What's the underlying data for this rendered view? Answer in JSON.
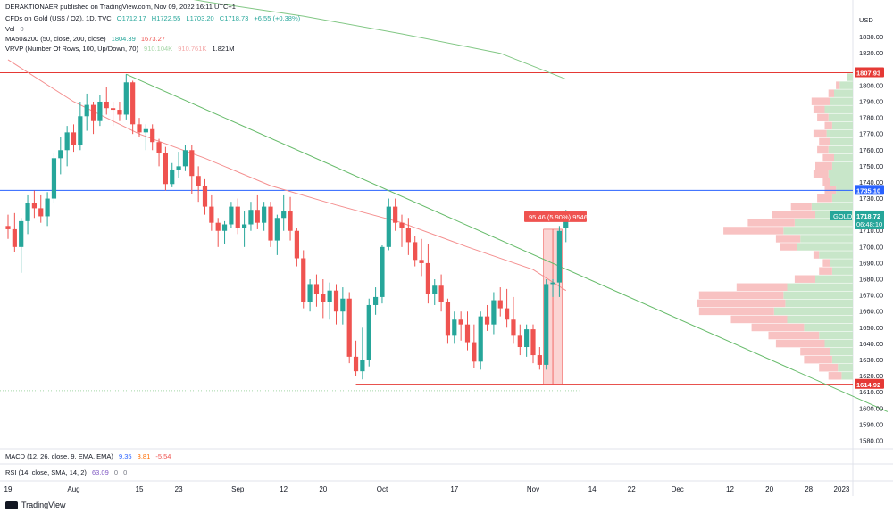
{
  "header": {
    "publisher": "DERAKTIONAER published on TradingView.com, Nov 09, 2022 16:11 UTC+1",
    "symbol": "CFDs on Gold (US$ / OZ), 1D, TVC",
    "open": "O1712.17",
    "high": "H1722.55",
    "low": "L1703.20",
    "close": "C1718.73",
    "change": "+6.55 (+0.38%)",
    "vol_label": "Vol",
    "vol_value": "0",
    "ma_label": "MA50&200 (50, close, 200, close)",
    "ma_values": "1804.39",
    "ma_values2": "1673.27",
    "vrvp_label": "VRVP (Number Of Rows, 100, Up/Down, 70)",
    "vrvp_v1": "910.104K",
    "vrvp_v2": "910.761K",
    "vrvp_v3": "1.821M"
  },
  "macd": {
    "label": "MACD (12, 26, close, 9, EMA, EMA)",
    "v1": "9.35",
    "v2": "3.81",
    "v3": "-5.54"
  },
  "rsi": {
    "label": "RSI (14, close, SMA, 14, 2)",
    "v1": "63.09",
    "v2": "0",
    "v3": "0"
  },
  "footer": {
    "brand": "TradingView"
  },
  "price_axis": {
    "currency": "USD"
  },
  "badges": {
    "resistance": "1807.93",
    "mid_line": "1735.10",
    "support": "1614.92",
    "symbol": "GOLD",
    "last_price": "1718.72",
    "countdown": "06:48:10",
    "measure": "95.46 (5.90%) 9546"
  },
  "colors": {
    "up": "#26a69a",
    "down": "#ef5350",
    "ma200": "#81c784",
    "ma50": "#f48f8f",
    "trend": "#66bb6a",
    "resistance": "#e53935",
    "mid": "#2962ff"
  },
  "chart_data": {
    "type": "candlestick",
    "title": "CFDs on Gold (US$ / OZ), 1D, TVC",
    "ylabel": "USD",
    "ylim": [
      1575,
      1853
    ],
    "yticks": [
      1580,
      1590,
      1600,
      1610,
      1620,
      1630,
      1640,
      1650,
      1660,
      1670,
      1680,
      1690,
      1700,
      1710,
      1720,
      1730,
      1740,
      1750,
      1760,
      1770,
      1780,
      1790,
      1800,
      1810,
      1820,
      1830,
      1840,
      1850
    ],
    "xticks": [
      {
        "label": "19",
        "idx": 0
      },
      {
        "label": "Aug",
        "idx": 10
      },
      {
        "label": "15",
        "idx": 20
      },
      {
        "label": "23",
        "idx": 26
      },
      {
        "label": "Sep",
        "idx": 35
      },
      {
        "label": "12",
        "idx": 42
      },
      {
        "label": "20",
        "idx": 48
      },
      {
        "label": "Oct",
        "idx": 57
      },
      {
        "label": "17",
        "idx": 68
      },
      {
        "label": "Nov",
        "idx": 80
      },
      {
        "label": "14",
        "idx": 89
      },
      {
        "label": "22",
        "idx": 95
      },
      {
        "label": "Dec",
        "idx": 102
      },
      {
        "label": "12",
        "idx": 110
      },
      {
        "label": "20",
        "idx": 116
      },
      {
        "label": "28",
        "idx": 122
      },
      {
        "label": "2023",
        "idx": 127
      }
    ],
    "ohlc": [
      [
        1713,
        1720,
        1705,
        1711
      ],
      [
        1711,
        1721,
        1697,
        1700
      ],
      [
        1700,
        1718,
        1684,
        1716
      ],
      [
        1716,
        1732,
        1708,
        1727
      ],
      [
        1727,
        1735,
        1718,
        1724
      ],
      [
        1724,
        1732,
        1715,
        1719
      ],
      [
        1719,
        1734,
        1713,
        1730
      ],
      [
        1730,
        1758,
        1727,
        1755
      ],
      [
        1755,
        1768,
        1745,
        1760
      ],
      [
        1760,
        1775,
        1750,
        1771
      ],
      [
        1771,
        1776,
        1759,
        1763
      ],
      [
        1763,
        1790,
        1760,
        1781
      ],
      [
        1781,
        1795,
        1772,
        1788
      ],
      [
        1788,
        1790,
        1770,
        1778
      ],
      [
        1778,
        1794,
        1775,
        1790
      ],
      [
        1790,
        1799,
        1782,
        1786
      ],
      [
        1786,
        1790,
        1775,
        1785
      ],
      [
        1785,
        1790,
        1778,
        1782
      ],
      [
        1782,
        1807,
        1779,
        1802
      ],
      [
        1802,
        1803,
        1770,
        1776
      ],
      [
        1776,
        1780,
        1768,
        1771
      ],
      [
        1771,
        1776,
        1760,
        1773
      ],
      [
        1773,
        1776,
        1760,
        1765
      ],
      [
        1765,
        1767,
        1750,
        1758
      ],
      [
        1758,
        1762,
        1735,
        1739
      ],
      [
        1739,
        1752,
        1737,
        1748
      ],
      [
        1748,
        1759,
        1743,
        1750
      ],
      [
        1750,
        1763,
        1747,
        1760
      ],
      [
        1760,
        1763,
        1733,
        1744
      ],
      [
        1744,
        1750,
        1728,
        1738
      ],
      [
        1738,
        1742,
        1720,
        1725
      ],
      [
        1725,
        1732,
        1710,
        1715
      ],
      [
        1715,
        1718,
        1700,
        1710
      ],
      [
        1710,
        1716,
        1702,
        1714
      ],
      [
        1714,
        1728,
        1712,
        1725
      ],
      [
        1725,
        1730,
        1708,
        1712
      ],
      [
        1712,
        1722,
        1700,
        1714
      ],
      [
        1714,
        1728,
        1710,
        1723
      ],
      [
        1723,
        1732,
        1711,
        1715
      ],
      [
        1715,
        1728,
        1710,
        1725
      ],
      [
        1725,
        1728,
        1700,
        1704
      ],
      [
        1704,
        1720,
        1695,
        1718
      ],
      [
        1718,
        1732,
        1710,
        1722
      ],
      [
        1722,
        1731,
        1704,
        1710
      ],
      [
        1710,
        1712,
        1688,
        1693
      ],
      [
        1693,
        1698,
        1662,
        1666
      ],
      [
        1666,
        1680,
        1660,
        1677
      ],
      [
        1677,
        1683,
        1663,
        1671
      ],
      [
        1671,
        1680,
        1656,
        1666
      ],
      [
        1666,
        1678,
        1655,
        1673
      ],
      [
        1673,
        1677,
        1652,
        1660
      ],
      [
        1660,
        1675,
        1652,
        1668
      ],
      [
        1668,
        1672,
        1628,
        1632
      ],
      [
        1632,
        1642,
        1620,
        1623
      ],
      [
        1623,
        1650,
        1618,
        1630
      ],
      [
        1630,
        1668,
        1626,
        1664
      ],
      [
        1664,
        1675,
        1658,
        1669
      ],
      [
        1669,
        1701,
        1665,
        1700
      ],
      [
        1700,
        1730,
        1698,
        1725
      ],
      [
        1725,
        1730,
        1710,
        1715
      ],
      [
        1715,
        1720,
        1700,
        1712
      ],
      [
        1712,
        1718,
        1695,
        1703
      ],
      [
        1703,
        1707,
        1688,
        1692
      ],
      [
        1692,
        1705,
        1682,
        1690
      ],
      [
        1690,
        1702,
        1665,
        1671
      ],
      [
        1671,
        1680,
        1664,
        1676
      ],
      [
        1676,
        1683,
        1660,
        1666
      ],
      [
        1666,
        1668,
        1640,
        1645
      ],
      [
        1645,
        1660,
        1640,
        1655
      ],
      [
        1655,
        1660,
        1642,
        1652
      ],
      [
        1652,
        1660,
        1636,
        1641
      ],
      [
        1641,
        1652,
        1625,
        1629
      ],
      [
        1629,
        1660,
        1624,
        1657
      ],
      [
        1657,
        1664,
        1648,
        1652
      ],
      [
        1652,
        1672,
        1646,
        1667
      ],
      [
        1667,
        1675,
        1657,
        1662
      ],
      [
        1662,
        1674,
        1650,
        1655
      ],
      [
        1655,
        1669,
        1640,
        1645
      ],
      [
        1645,
        1652,
        1633,
        1638
      ],
      [
        1638,
        1652,
        1632,
        1649
      ],
      [
        1649,
        1652,
        1628,
        1633
      ],
      [
        1633,
        1638,
        1624,
        1627
      ],
      [
        1627,
        1680,
        1624,
        1677
      ],
      [
        1677,
        1680,
        1669,
        1678
      ],
      [
        1678,
        1713,
        1669,
        1710
      ],
      [
        1712,
        1723,
        1703,
        1719
      ]
    ],
    "ma200": [
      {
        "idx": 0,
        "v": 1869
      },
      {
        "idx": 15,
        "v": 1863
      },
      {
        "idx": 30,
        "v": 1852
      },
      {
        "idx": 45,
        "v": 1843
      },
      {
        "idx": 60,
        "v": 1832
      },
      {
        "idx": 75,
        "v": 1820
      },
      {
        "idx": 85,
        "v": 1804
      }
    ],
    "ma50": [
      {
        "idx": 0,
        "v": 1816
      },
      {
        "idx": 10,
        "v": 1790
      },
      {
        "idx": 20,
        "v": 1770
      },
      {
        "idx": 30,
        "v": 1755
      },
      {
        "idx": 40,
        "v": 1738
      },
      {
        "idx": 50,
        "v": 1726
      },
      {
        "idx": 60,
        "v": 1715
      },
      {
        "idx": 70,
        "v": 1700
      },
      {
        "idx": 80,
        "v": 1686
      },
      {
        "idx": 85,
        "v": 1673
      }
    ],
    "trendline": [
      {
        "idx": 18,
        "v": 1807
      },
      {
        "idx": 134,
        "v": 1598
      }
    ],
    "resistance": 1807.93,
    "midline": 1735.1,
    "support": 1614.92,
    "support_start_idx": 53,
    "dotted_level": 1611,
    "measure_box": {
      "idx_start": 82,
      "idx_end": 84,
      "low": 1615,
      "high": 1711
    },
    "volume_profile": [
      {
        "p": 1805,
        "up": 6,
        "dn": 0
      },
      {
        "p": 1800,
        "up": 14,
        "dn": 4
      },
      {
        "p": 1795,
        "up": 20,
        "dn": 6
      },
      {
        "p": 1790,
        "up": 24,
        "dn": 20
      },
      {
        "p": 1785,
        "up": 30,
        "dn": 12
      },
      {
        "p": 1780,
        "up": 26,
        "dn": 12
      },
      {
        "p": 1775,
        "up": 22,
        "dn": 8
      },
      {
        "p": 1770,
        "up": 28,
        "dn": 14
      },
      {
        "p": 1765,
        "up": 24,
        "dn": 12
      },
      {
        "p": 1760,
        "up": 26,
        "dn": 12
      },
      {
        "p": 1755,
        "up": 20,
        "dn": 12
      },
      {
        "p": 1750,
        "up": 22,
        "dn": 18
      },
      {
        "p": 1745,
        "up": 26,
        "dn": 16
      },
      {
        "p": 1740,
        "up": 24,
        "dn": 8
      },
      {
        "p": 1735,
        "up": 18,
        "dn": 12
      },
      {
        "p": 1730,
        "up": 22,
        "dn": 16
      },
      {
        "p": 1725,
        "up": 44,
        "dn": 22
      },
      {
        "p": 1720,
        "up": 40,
        "dn": 46
      },
      {
        "p": 1715,
        "up": 62,
        "dn": 50
      },
      {
        "p": 1710,
        "up": 74,
        "dn": 64
      },
      {
        "p": 1705,
        "up": 56,
        "dn": 26
      },
      {
        "p": 1700,
        "up": 60,
        "dn": 18
      },
      {
        "p": 1695,
        "up": 36,
        "dn": 6
      },
      {
        "p": 1690,
        "up": 24,
        "dn": 8
      },
      {
        "p": 1685,
        "up": 22,
        "dn": 14
      },
      {
        "p": 1680,
        "up": 40,
        "dn": 22
      },
      {
        "p": 1675,
        "up": 70,
        "dn": 54
      },
      {
        "p": 1670,
        "up": 74,
        "dn": 90
      },
      {
        "p": 1665,
        "up": 72,
        "dn": 94
      },
      {
        "p": 1660,
        "up": 84,
        "dn": 80
      },
      {
        "p": 1655,
        "up": 70,
        "dn": 60
      },
      {
        "p": 1650,
        "up": 52,
        "dn": 56
      },
      {
        "p": 1645,
        "up": 36,
        "dn": 54
      },
      {
        "p": 1640,
        "up": 30,
        "dn": 52
      },
      {
        "p": 1635,
        "up": 24,
        "dn": 32
      },
      {
        "p": 1630,
        "up": 22,
        "dn": 30
      },
      {
        "p": 1625,
        "up": 16,
        "dn": 20
      },
      {
        "p": 1620,
        "up": 12,
        "dn": 14
      }
    ]
  }
}
